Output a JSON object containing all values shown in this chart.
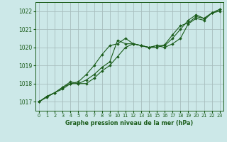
{
  "title": "Graphe pression niveau de la mer (hPa)",
  "bg_color": "#cce8e8",
  "grid_color": "#b8c8c8",
  "line_color": "#1a5c1a",
  "marker_color": "#1a5c1a",
  "xlim": [
    -0.5,
    23.5
  ],
  "ylim": [
    1016.5,
    1022.5
  ],
  "yticks": [
    1017,
    1018,
    1019,
    1020,
    1021,
    1022
  ],
  "xticks": [
    0,
    1,
    2,
    3,
    4,
    5,
    6,
    7,
    8,
    9,
    10,
    11,
    12,
    13,
    14,
    15,
    16,
    17,
    18,
    19,
    20,
    21,
    22,
    23
  ],
  "series": [
    [
      1017.0,
      1017.3,
      1017.5,
      1017.8,
      1018.0,
      1018.1,
      1018.5,
      1019.0,
      1019.6,
      1020.1,
      1020.2,
      1020.5,
      1020.2,
      1020.1,
      1020.0,
      1020.1,
      1020.1,
      1020.5,
      1021.0,
      1021.5,
      1021.8,
      1021.6,
      1021.9,
      1022.1
    ],
    [
      1017.0,
      1017.3,
      1017.5,
      1017.8,
      1018.1,
      1018.0,
      1018.2,
      1018.5,
      1018.9,
      1019.2,
      1020.4,
      1020.2,
      1020.2,
      1020.1,
      1020.0,
      1020.1,
      1020.0,
      1020.2,
      1020.5,
      1021.3,
      1021.6,
      1021.5,
      1021.9,
      1022.1
    ],
    [
      1017.0,
      1017.25,
      1017.5,
      1017.7,
      1018.0,
      1018.0,
      1018.0,
      1018.3,
      1018.7,
      1019.0,
      1019.5,
      1020.0,
      1020.2,
      1020.1,
      1020.0,
      1020.0,
      1020.15,
      1020.7,
      1021.2,
      1021.35,
      1021.7,
      1021.6,
      1021.9,
      1022.0
    ]
  ]
}
